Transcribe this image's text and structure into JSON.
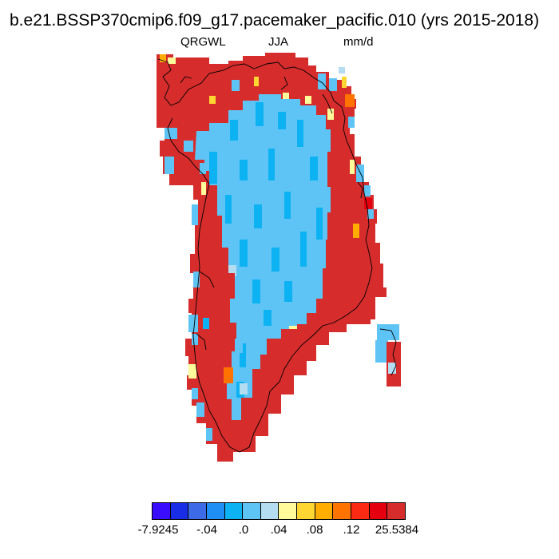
{
  "title": "b.e21.BSSP370cmip6.f09_g17.pacemaker_pacific.010 (yrs 2015-2018)",
  "subtitle": {
    "variable": "QRGWL",
    "season": "JJA",
    "units": "mm/d"
  },
  "colorbar": {
    "colors": [
      "#3a0dff",
      "#1a2de6",
      "#3d6be8",
      "#1f8ff5",
      "#0db2f2",
      "#5ec4f5",
      "#b4ddf1",
      "#fffb9a",
      "#ffd632",
      "#ffad00",
      "#ff7400",
      "#fc2a12",
      "#e4000f",
      "#d62c2c"
    ],
    "labels": [
      "-7.9245",
      "-.04",
      ".0",
      ".04",
      ".08",
      ".12",
      "25.5384"
    ]
  },
  "map": {
    "region": "Greenland",
    "palette": {
      "dark_red": "#d62c2c",
      "light_blue": "#5ec4f5",
      "mid_blue": "#0db2f2",
      "pale_blue": "#b4ddf1",
      "yellow": "#ffd632",
      "pale_yellow": "#fffb9a",
      "orange": "#ff7400",
      "amber": "#ffad00",
      "bright_red": "#e4000f",
      "coastline": "#000000"
    }
  }
}
